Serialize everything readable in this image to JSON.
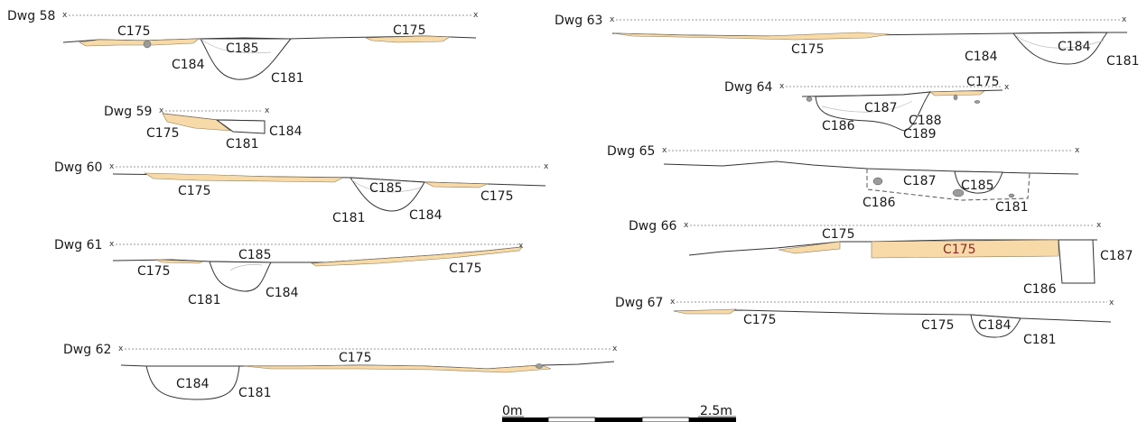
{
  "drawings": [
    {
      "id": "dwg58",
      "title": "Dwg 58",
      "contexts": [
        "C175",
        "C185",
        "C175",
        "C184",
        "C181"
      ]
    },
    {
      "id": "dwg59",
      "title": "Dwg 59",
      "contexts": [
        "C175",
        "C181",
        "C184"
      ]
    },
    {
      "id": "dwg60",
      "title": "Dwg 60",
      "contexts": [
        "C175",
        "C185",
        "C175",
        "C181",
        "C184"
      ]
    },
    {
      "id": "dwg61",
      "title": "Dwg 61",
      "contexts": [
        "C185",
        "C175",
        "C175",
        "C181",
        "C184"
      ]
    },
    {
      "id": "dwg62",
      "title": "Dwg 62",
      "contexts": [
        "C175",
        "C184",
        "C181"
      ]
    },
    {
      "id": "dwg63",
      "title": "Dwg 63",
      "contexts": [
        "C175",
        "C184",
        "C184",
        "C181"
      ]
    },
    {
      "id": "dwg64",
      "title": "Dwg 64",
      "contexts": [
        "C175",
        "C187",
        "C188",
        "C186",
        "C189"
      ]
    },
    {
      "id": "dwg65",
      "title": "Dwg 65",
      "contexts": [
        "C187",
        "C185",
        "C186",
        "C181"
      ]
    },
    {
      "id": "dwg66",
      "title": "Dwg 66",
      "contexts": [
        "C175",
        "C175",
        "C187",
        "C186"
      ]
    },
    {
      "id": "dwg67",
      "title": "Dwg 67",
      "contexts": [
        "C175",
        "C175",
        "C184",
        "C181"
      ]
    }
  ],
  "datum_marker": "x",
  "scale_bar": {
    "start_label": "0m",
    "end_label": "2.5m",
    "segments": 5
  },
  "colors": {
    "c175_fill": "#f8d9a8",
    "line": "#333333",
    "stone": "#9b9b9b",
    "highlight_label": "#8b2a2a"
  }
}
